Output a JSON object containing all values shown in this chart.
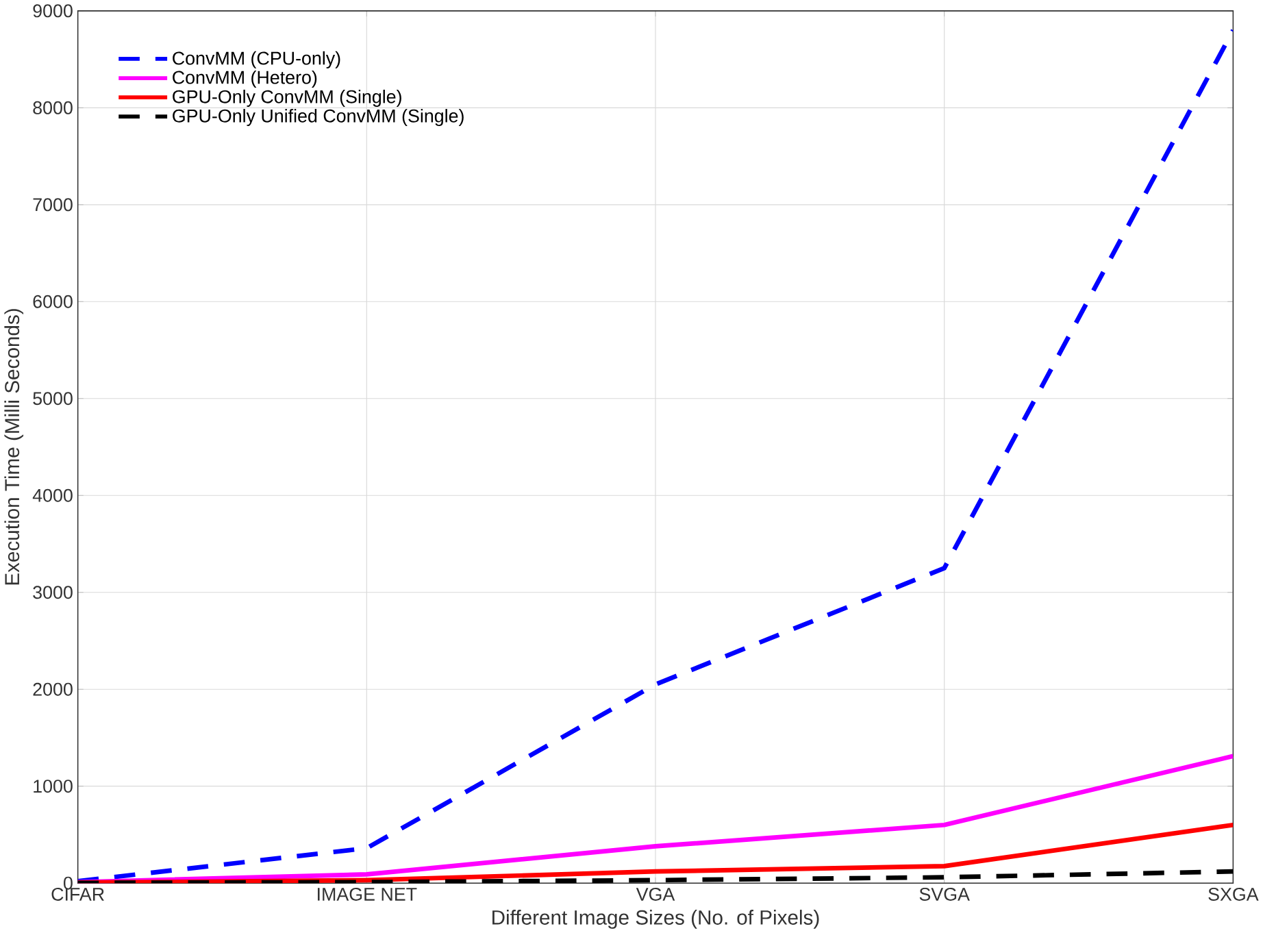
{
  "chart_data": {
    "type": "line",
    "xlabel": "Different Image Sizes (No. of Pixels)",
    "ylabel": "Execution Time (Milli Seconds)",
    "categories": [
      "CIFAR",
      "IMAGE NET",
      "VGA",
      "SVGA",
      "SXGA"
    ],
    "ylim": [
      0,
      9000
    ],
    "yticks": [
      0,
      1000,
      2000,
      3000,
      4000,
      5000,
      6000,
      7000,
      8000,
      9000
    ],
    "grid": true,
    "legend": "top left",
    "marker": "none",
    "series": [
      {
        "name": "ConvMM (CPU-only)",
        "color": "#0000ff",
        "line_style": "dashed",
        "values": [
          20,
          360,
          2050,
          3250,
          8800
        ]
      },
      {
        "name": "ConvMM (Hetero)",
        "color": "#ff00ff",
        "line_style": "solid",
        "values": [
          10,
          90,
          380,
          600,
          1310
        ]
      },
      {
        "name": "GPU-Only ConvMM (Single)",
        "color": "#ff0000",
        "line_style": "solid",
        "values": [
          5,
          30,
          120,
          175,
          600
        ]
      },
      {
        "name": "GPU-Only Unified ConvMM (Single)",
        "color": "#000000",
        "line_style": "dashed",
        "values": [
          2,
          10,
          30,
          60,
          120
        ]
      }
    ]
  }
}
